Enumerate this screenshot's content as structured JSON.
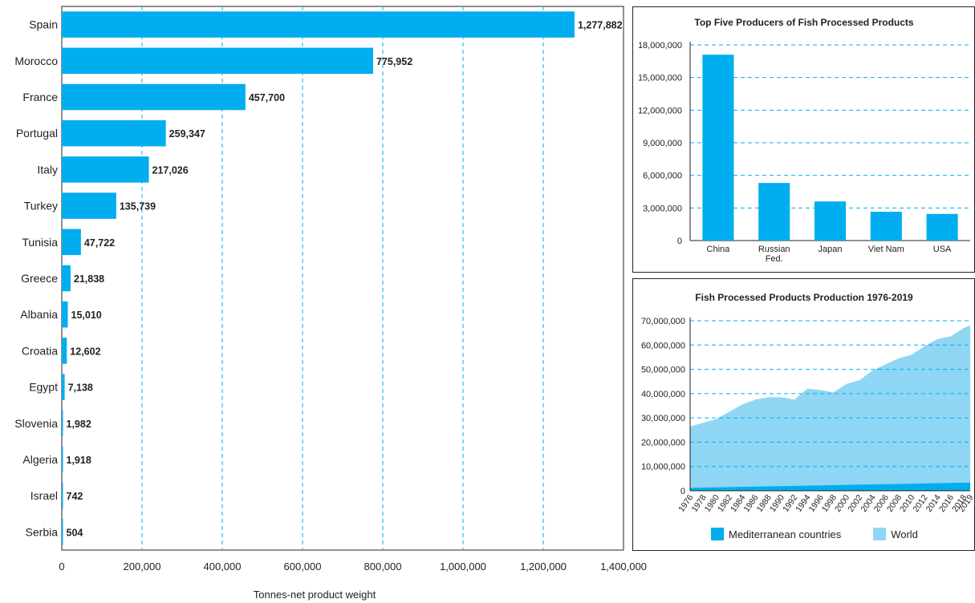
{
  "colors": {
    "bar": "#00aeef",
    "world": "#8fd6f4",
    "mediterranean": "#00aeef",
    "grid": "#00aeef",
    "text": "#222222"
  },
  "chart_data": [
    {
      "type": "bar",
      "orientation": "horizontal",
      "categories": [
        "Spain",
        "Morocco",
        "France",
        "Portugal",
        "Italy",
        "Turkey",
        "Tunisia",
        "Greece",
        "Albania",
        "Croatia",
        "Egypt",
        "Slovenia",
        "Algeria",
        "Israel",
        "Serbia"
      ],
      "values": [
        1277882,
        775952,
        457700,
        259347,
        217026,
        135739,
        47722,
        21838,
        15010,
        12602,
        7138,
        1982,
        1918,
        742,
        504
      ],
      "data_labels": [
        "1,277,882",
        "775,952",
        "457,700",
        "259,347",
        "217,026",
        "135,739",
        "47,722",
        "21,838",
        "15,010",
        "12,602",
        "7,138",
        "1,982",
        "1,918",
        "742",
        "504"
      ],
      "xlabel": "Tonnes-net product weight",
      "xlim": [
        0,
        1400000
      ],
      "xticks": [
        "0",
        "200,000",
        "400,000",
        "600,000",
        "800,000",
        "1,000,000",
        "1,200,000",
        "1,400,000"
      ],
      "grid": "vertical dashed"
    },
    {
      "type": "bar",
      "title": "Top Five Producers of Fish Processed Products",
      "categories": [
        "China",
        "Russian Fed.",
        "Japan",
        "Viet Nam",
        "USA"
      ],
      "values": [
        17100000,
        5300000,
        3600000,
        2650000,
        2450000
      ],
      "ylim": [
        0,
        18000000
      ],
      "yticks": [
        "0",
        "3,000,000",
        "6,000,000",
        "9,000,000",
        "12,000,000",
        "15,000,000",
        "18,000,000"
      ],
      "grid": "horizontal dashed"
    },
    {
      "type": "area",
      "title": "Fish Processed Products Production 1976-2019",
      "x": [
        1976,
        1978,
        1980,
        1982,
        1984,
        1986,
        1988,
        1990,
        1992,
        1994,
        1996,
        1998,
        2000,
        2002,
        2004,
        2006,
        2008,
        2010,
        2012,
        2014,
        2016,
        2018,
        2019
      ],
      "xticks": [
        "1976",
        "1978",
        "1980",
        "1982",
        "1984",
        "1986",
        "1988",
        "1990",
        "1992",
        "1994",
        "1996",
        "1998",
        "2000",
        "2002",
        "2004",
        "2006",
        "2008",
        "2010",
        "2012",
        "2014",
        "2016",
        "2018",
        "2019"
      ],
      "series": [
        {
          "name": "World",
          "values": [
            26500000,
            28000000,
            29500000,
            32500000,
            35500000,
            37500000,
            38500000,
            38500000,
            37500000,
            42000000,
            41500000,
            40500000,
            44000000,
            45500000,
            49500000,
            52000000,
            54500000,
            56000000,
            59500000,
            62500000,
            63500000,
            67000000,
            68000000
          ]
        },
        {
          "name": "Mediterranean countries",
          "values": [
            1200000,
            1300000,
            1400000,
            1500000,
            1600000,
            1700000,
            1800000,
            1900000,
            2000000,
            2100000,
            2200000,
            2300000,
            2400000,
            2500000,
            2600000,
            2700000,
            2800000,
            2900000,
            3000000,
            3100000,
            3200000,
            3300000,
            3400000
          ]
        }
      ],
      "ylim": [
        0,
        70000000
      ],
      "yticks": [
        "0",
        "10,000,000",
        "20,000,000",
        "30,000,000",
        "40,000,000",
        "50,000,000",
        "60,000,000",
        "70,000,000"
      ],
      "legend": {
        "position": "bottom",
        "items": [
          "Mediterranean countries",
          "World"
        ]
      },
      "grid": "horizontal dashed"
    }
  ]
}
